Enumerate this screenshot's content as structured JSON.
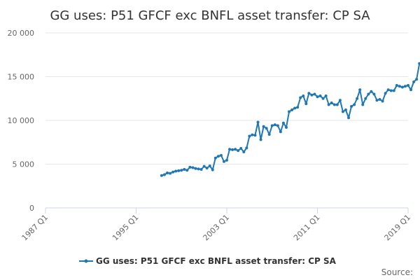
{
  "chart_data": {
    "type": "line",
    "title": "GG uses: P51 GFCF exc BNFL asset transfer: CP SA",
    "xlabel": "",
    "ylabel": "",
    "x_ticks": [
      "1987 Q1",
      "1995 Q1",
      "2003 Q1",
      "2011 Q1",
      "2019 Q1"
    ],
    "y_ticks": [
      "0",
      "5 000",
      "10 000",
      "15 000",
      "20 000"
    ],
    "xlim": [
      "1987 Q1",
      "2019 Q1"
    ],
    "ylim": [
      0,
      20000
    ],
    "grid": true,
    "legend": "bottom-center",
    "source": "Source:",
    "color": "#1f77b4",
    "series": [
      {
        "name": "GG uses: P51 GFCF exc BNFL asset transfer: CP SA",
        "start": "1997 Q2",
        "values": [
          3700,
          3800,
          4000,
          3950,
          4100,
          4200,
          4250,
          4300,
          4400,
          4300,
          4650,
          4600,
          4500,
          4450,
          4400,
          4750,
          4550,
          4800,
          4350,
          5700,
          5900,
          6000,
          5300,
          5450,
          6700,
          6650,
          6700,
          6550,
          6800,
          6400,
          6850,
          8200,
          8350,
          8300,
          9800,
          7800,
          9300,
          9100,
          8400,
          9400,
          9500,
          9400,
          8700,
          9700,
          9200,
          11000,
          11200,
          11400,
          11500,
          12600,
          12800,
          11900,
          13100,
          12900,
          13000,
          12700,
          12800,
          12500,
          12800,
          11800,
          12000,
          11800,
          11800,
          12300,
          11000,
          11200,
          10300,
          11600,
          11800,
          12500,
          13500,
          11800,
          12500,
          13000,
          13300,
          13000,
          12300,
          12400,
          12200,
          13100,
          13500,
          13400,
          13400,
          14000,
          13900,
          13800,
          13900,
          14000,
          13500,
          14400,
          14700,
          16500
        ]
      }
    ]
  }
}
